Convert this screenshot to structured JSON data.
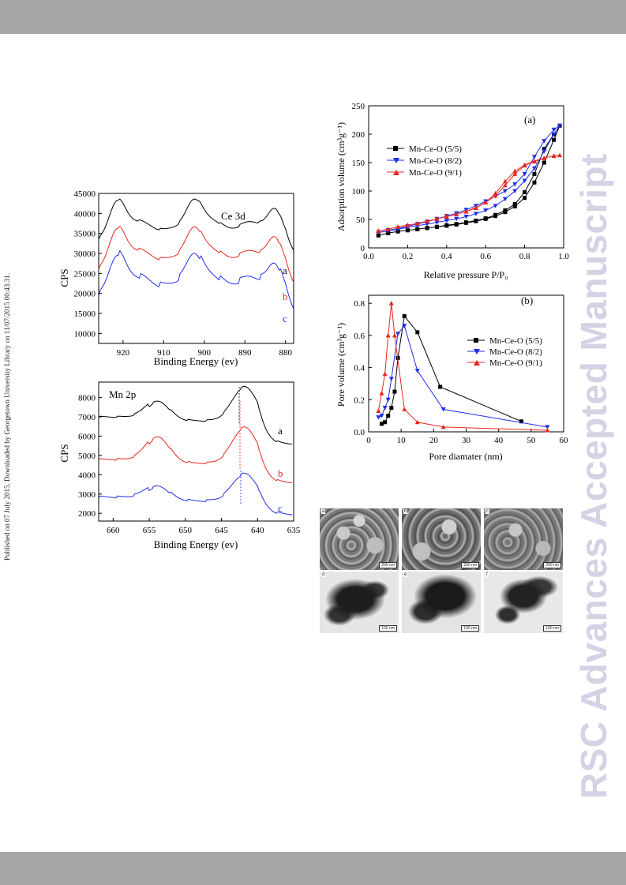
{
  "side_note": "Published on 07 July 2015. Downloaded by Georgetown University Library on 11/07/2015 00:43:31.",
  "watermark": "RSC Advances Accepted Manuscript",
  "colors": {
    "black": "#000000",
    "red": "#e8261f",
    "blue": "#1f2ee8",
    "bar": "#a6a6a6",
    "watermark": "#d3d3e5"
  },
  "ce3d": {
    "label": "Ce 3d",
    "ylabel": "CPS",
    "xlabel": "Binding Energy (ev)",
    "xticks": [
      "920",
      "910",
      "900",
      "890",
      "880"
    ],
    "yticks": [
      "10000",
      "15000",
      "20000",
      "25000",
      "30000",
      "35000",
      "40000",
      "45000"
    ],
    "curve_labels": [
      "a",
      "b",
      "c"
    ]
  },
  "mn2p": {
    "label": "Mn 2p",
    "ylabel": "CPS",
    "xlabel": "Binding Energy (ev)",
    "xticks": [
      "660",
      "655",
      "650",
      "645",
      "640",
      "635"
    ],
    "yticks": [
      "2000",
      "3000",
      "4000",
      "5000",
      "6000",
      "7000",
      "8000"
    ],
    "curve_labels": [
      "a",
      "b",
      "c"
    ]
  },
  "chart_data": [
    {
      "type": "line",
      "panel": "(a)",
      "xlabel": "Relative pressure P/P₀",
      "ylabel": "Adsorption volume (cm³g⁻¹)",
      "xlim": [
        0.0,
        1.0
      ],
      "ylim": [
        0,
        250
      ],
      "xticks": [
        "0.0",
        "0.2",
        "0.4",
        "0.6",
        "0.8",
        "1.0"
      ],
      "yticks": [
        "0",
        "50",
        "100",
        "150",
        "200",
        "250"
      ],
      "legend_position": "upper-left",
      "series": [
        {
          "name": "Mn-Ce-O (5/5)",
          "color": "#000000",
          "marker": "square",
          "x": [
            0.05,
            0.1,
            0.15,
            0.2,
            0.25,
            0.3,
            0.35,
            0.4,
            0.45,
            0.5,
            0.55,
            0.6,
            0.65,
            0.7,
            0.75,
            0.8,
            0.85,
            0.9,
            0.95,
            0.98,
            0.95,
            0.9,
            0.85,
            0.8,
            0.75,
            0.7,
            0.65,
            0.6,
            0.55,
            0.5,
            0.45,
            0.4,
            0.35,
            0.3,
            0.25,
            0.2,
            0.15,
            0.1,
            0.05
          ],
          "y": [
            22,
            26,
            29,
            31,
            33,
            35,
            37,
            39,
            41,
            44,
            47,
            51,
            56,
            63,
            73,
            88,
            115,
            150,
            190,
            215,
            200,
            174,
            130,
            98,
            77,
            66,
            58,
            52,
            48,
            45,
            42,
            40,
            37,
            35,
            33,
            31,
            29,
            26,
            22
          ]
        },
        {
          "name": "Mn-Ce-O (8/2)",
          "color": "#1f2ee8",
          "marker": "triangle-down",
          "x": [
            0.05,
            0.1,
            0.15,
            0.2,
            0.25,
            0.3,
            0.35,
            0.4,
            0.45,
            0.5,
            0.55,
            0.6,
            0.65,
            0.7,
            0.75,
            0.8,
            0.85,
            0.9,
            0.95,
            0.98,
            0.95,
            0.9,
            0.85,
            0.8,
            0.75,
            0.7,
            0.65,
            0.6,
            0.55,
            0.5,
            0.45,
            0.4,
            0.35,
            0.3,
            0.25,
            0.2,
            0.15,
            0.1,
            0.05
          ],
          "y": [
            27,
            30,
            33,
            36,
            39,
            42,
            45,
            48,
            51,
            55,
            60,
            66,
            74,
            86,
            100,
            118,
            140,
            170,
            200,
            215,
            208,
            188,
            160,
            130,
            112,
            100,
            91,
            82,
            74,
            67,
            61,
            56,
            51,
            46,
            42,
            38,
            34,
            31,
            27
          ]
        },
        {
          "name": "Mn-Ce-O (9/1)",
          "color": "#e8261f",
          "marker": "triangle-up",
          "x": [
            0.05,
            0.1,
            0.15,
            0.2,
            0.25,
            0.3,
            0.35,
            0.4,
            0.45,
            0.5,
            0.55,
            0.6,
            0.65,
            0.7,
            0.75,
            0.8,
            0.85,
            0.9,
            0.95,
            0.98,
            0.95,
            0.9,
            0.85,
            0.8,
            0.75,
            0.7,
            0.65,
            0.6,
            0.55,
            0.5,
            0.45,
            0.4,
            0.35,
            0.3,
            0.25,
            0.2,
            0.15,
            0.1,
            0.05
          ],
          "y": [
            30,
            33,
            37,
            40,
            43,
            47,
            51,
            55,
            59,
            64,
            70,
            80,
            96,
            117,
            135,
            146,
            153,
            158,
            162,
            163,
            162,
            158,
            152,
            145,
            130,
            110,
            92,
            80,
            71,
            64,
            59,
            55,
            51,
            47,
            43,
            40,
            37,
            33,
            30
          ]
        }
      ]
    },
    {
      "type": "line",
      "panel": "(b)",
      "xlabel": "Pore diamater (nm)",
      "ylabel": "Pore volume (cm³g⁻¹)",
      "xlim": [
        0,
        60
      ],
      "ylim": [
        0.0,
        0.85
      ],
      "xticks": [
        "0",
        "10",
        "20",
        "30",
        "40",
        "50",
        "60"
      ],
      "yticks": [
        "0.0",
        "0.2",
        "0.4",
        "0.6",
        "0.8"
      ],
      "legend_position": "right",
      "series": [
        {
          "name": "Mn-Ce-O (5/5)",
          "color": "#000000",
          "marker": "square",
          "x": [
            4,
            5,
            6,
            7,
            8,
            9,
            11,
            15,
            22,
            47
          ],
          "y": [
            0.05,
            0.06,
            0.1,
            0.15,
            0.25,
            0.46,
            0.72,
            0.62,
            0.28,
            0.065
          ]
        },
        {
          "name": "Mn-Ce-O (8/2)",
          "color": "#1f2ee8",
          "marker": "triangle-down",
          "x": [
            3,
            4,
            5,
            6,
            7,
            9,
            11,
            15,
            23,
            55
          ],
          "y": [
            0.09,
            0.1,
            0.15,
            0.2,
            0.33,
            0.61,
            0.66,
            0.38,
            0.14,
            0.03
          ]
        },
        {
          "name": "Mn-Ce-O (9/1)",
          "color": "#e8261f",
          "marker": "triangle-up",
          "x": [
            3,
            4,
            5,
            6,
            7,
            8,
            11,
            15,
            23,
            55
          ],
          "y": [
            0.13,
            0.24,
            0.36,
            0.6,
            0.8,
            0.6,
            0.14,
            0.06,
            0.03,
            0.01
          ]
        }
      ]
    }
  ],
  "micrographs": {
    "tiles": [
      {
        "label": "a",
        "scale": "200 nm"
      },
      {
        "label": "b",
        "scale": "200 nm"
      },
      {
        "label": "c",
        "scale": "200 nm"
      },
      {
        "label": "d",
        "scale": "100 nm"
      },
      {
        "label": "e",
        "scale": "100 nm"
      },
      {
        "label": "f",
        "scale": "100 nm"
      }
    ]
  }
}
